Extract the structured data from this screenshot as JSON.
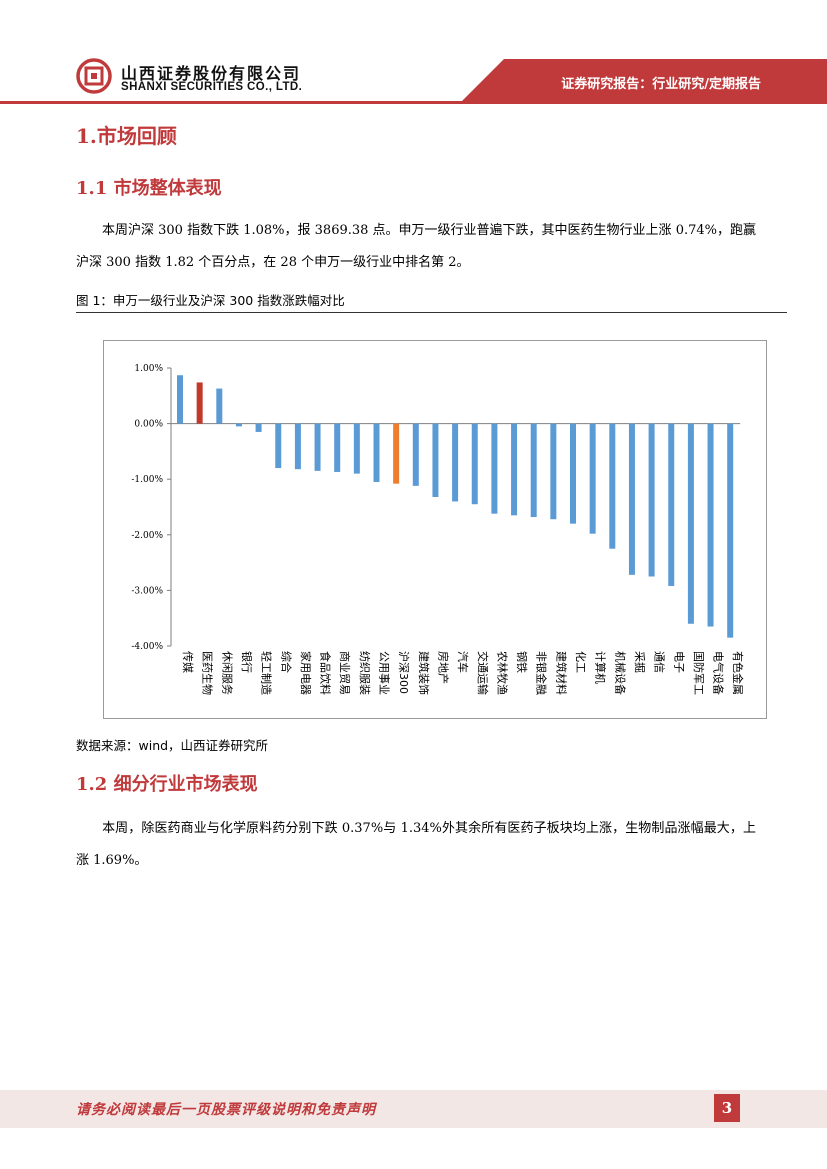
{
  "header": {
    "company_cn": "山西证券股份有限公司",
    "company_en": "SHANXI SECURITIES CO., LTD.",
    "report_type": "证券研究报告：行业研究/定期报告",
    "accent_color": "#c0393b"
  },
  "section1": {
    "title": "1.市场回顾",
    "sub1": {
      "title": "1.1 市场整体表现",
      "paragraph": "本周沪深 300 指数下跌 1.08%，报 3869.38 点。申万一级行业普遍下跌，其中医药生物行业上涨 0.74%，跑赢沪深 300 指数 1.82 个百分点，在 28 个申万一级行业中排名第 2。"
    },
    "figure": {
      "caption": "图 1：申万一级行业及沪深 300 指数涨跌幅对比",
      "source": "数据来源：wind，山西证券研究所"
    },
    "sub2": {
      "title": "1.2 细分行业市场表现",
      "paragraph": "本周，除医药商业与化学原料药分别下跌 0.37%与 1.34%外其余所有医药子板块均上涨，生物制品涨幅最大，上涨 1.69%。"
    }
  },
  "chart_data": {
    "type": "bar",
    "title": "",
    "xlabel": "",
    "ylabel": "",
    "ylim": [
      -4.0,
      1.0
    ],
    "yticks": [
      "1.00%",
      "0.00%",
      "-1.00%",
      "-2.00%",
      "-3.00%",
      "-4.00%"
    ],
    "ytick_values": [
      1.0,
      0.0,
      -1.0,
      -2.0,
      -3.0,
      -4.0
    ],
    "categories": [
      "传媒",
      "医药生物",
      "休闲服务",
      "银行",
      "轻工制造",
      "综合",
      "家用电器",
      "食品饮料",
      "商业贸易",
      "纺织服装",
      "公用事业",
      "沪深300",
      "建筑装饰",
      "房地产",
      "汽车",
      "交通运输",
      "农林牧渔",
      "钢铁",
      "非银金融",
      "建筑材料",
      "化工",
      "计算机",
      "机械设备",
      "采掘",
      "通信",
      "电子",
      "国防军工",
      "电气设备",
      "有色金属"
    ],
    "values": [
      0.87,
      0.74,
      0.63,
      -0.05,
      -0.15,
      -0.8,
      -0.82,
      -0.85,
      -0.87,
      -0.9,
      -1.05,
      -1.08,
      -1.12,
      -1.32,
      -1.4,
      -1.45,
      -1.62,
      -1.65,
      -1.68,
      -1.72,
      -1.8,
      -1.98,
      -2.25,
      -2.72,
      -2.75,
      -2.92,
      -3.6,
      -3.65,
      -3.85
    ],
    "highlight": {
      "医药生物": "#c0392b",
      "沪深300": "#ed7d31"
    },
    "bar_color": "#5b9bd5"
  },
  "footer": {
    "disclaimer": "请务必阅读最后一页股票评级说明和免责声明",
    "page_number": "3"
  }
}
